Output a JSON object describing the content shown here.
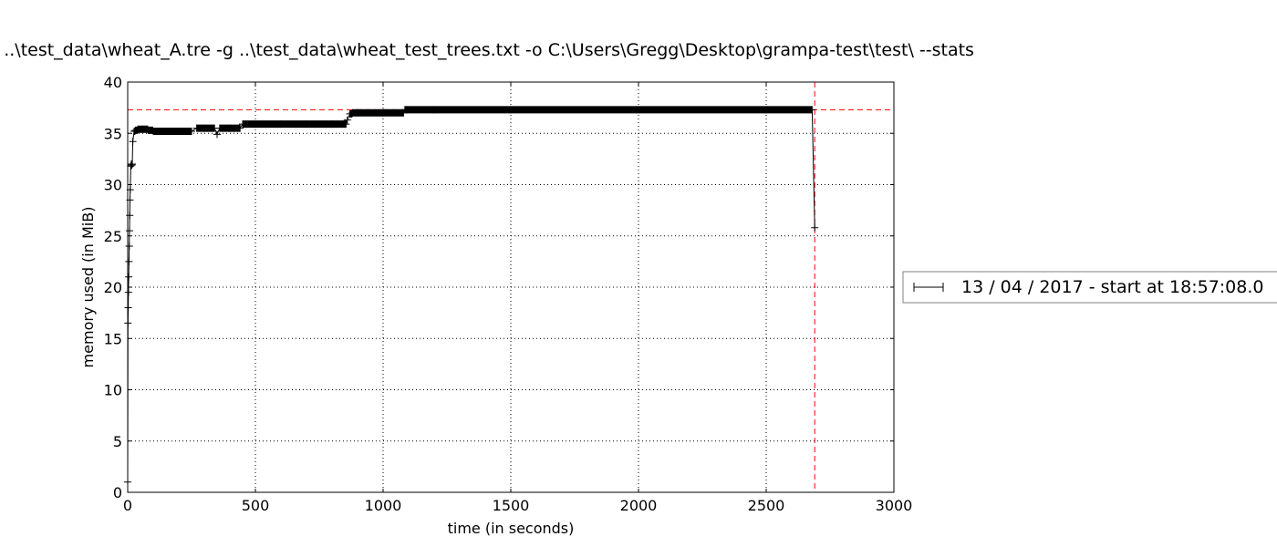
{
  "chart_data": {
    "type": "line",
    "title": "mprof run grampa.py -s ..\\test_data\\wheat_A.tre -g ..\\test_data\\wheat_test_trees.txt -o C:\\Users\\Gregg\\Desktop\\grampa-test\\test\\ --stats",
    "xlabel": "time (in seconds)",
    "ylabel": "memory used (in MiB)",
    "xlim": [
      0,
      3000
    ],
    "ylim": [
      0,
      40
    ],
    "xticks": [
      0,
      500,
      1000,
      1500,
      2000,
      2500,
      3000
    ],
    "xtick_labels": [
      "0",
      "500",
      "1000",
      "1500",
      "2000",
      "2500",
      "3000"
    ],
    "yticks": [
      0,
      5,
      10,
      15,
      20,
      25,
      30,
      35,
      40
    ],
    "ytick_labels": [
      "0",
      "5",
      "10",
      "15",
      "20",
      "25",
      "30",
      "35",
      "40"
    ],
    "grid": true,
    "legend_placement": "outside-right",
    "series": [
      {
        "name": "13 / 04 / 2017 - start at 18:57:08.0",
        "color": "#000000",
        "marker": "+",
        "x": [
          0,
          1,
          2,
          3,
          4,
          5,
          6,
          7,
          8,
          9,
          10,
          12,
          14,
          16,
          18,
          20,
          25,
          30,
          40,
          60,
          80,
          100,
          150,
          200,
          250,
          270,
          300,
          340,
          350,
          360,
          400,
          440,
          450,
          500,
          600,
          700,
          800,
          855,
          860,
          870,
          880,
          900,
          1000,
          1080,
          1085,
          1095,
          1200,
          1500,
          2000,
          2500,
          2680,
          2690
        ],
        "values": [
          1,
          16.5,
          18,
          19.5,
          21,
          22.5,
          24,
          25.5,
          27,
          28.5,
          29.5,
          31.8,
          32,
          31.9,
          32,
          34.2,
          35.2,
          35.3,
          35.4,
          35.4,
          35.3,
          35.2,
          35.2,
          35.2,
          35.2,
          35.5,
          35.5,
          35.5,
          34.9,
          35.5,
          35.5,
          35.5,
          35.9,
          35.9,
          35.9,
          35.9,
          35.9,
          35.9,
          36.3,
          36.9,
          37.0,
          37.0,
          37.0,
          37.0,
          37.3,
          37.3,
          37.3,
          37.3,
          37.3,
          37.3,
          37.3,
          25.8
        ]
      }
    ],
    "annotations": [
      {
        "kind": "hline",
        "value": 37.3,
        "color": "#ff0000",
        "style": "dashed"
      },
      {
        "kind": "vline",
        "value": 2690,
        "color": "#ff0000",
        "style": "dashed"
      }
    ]
  }
}
